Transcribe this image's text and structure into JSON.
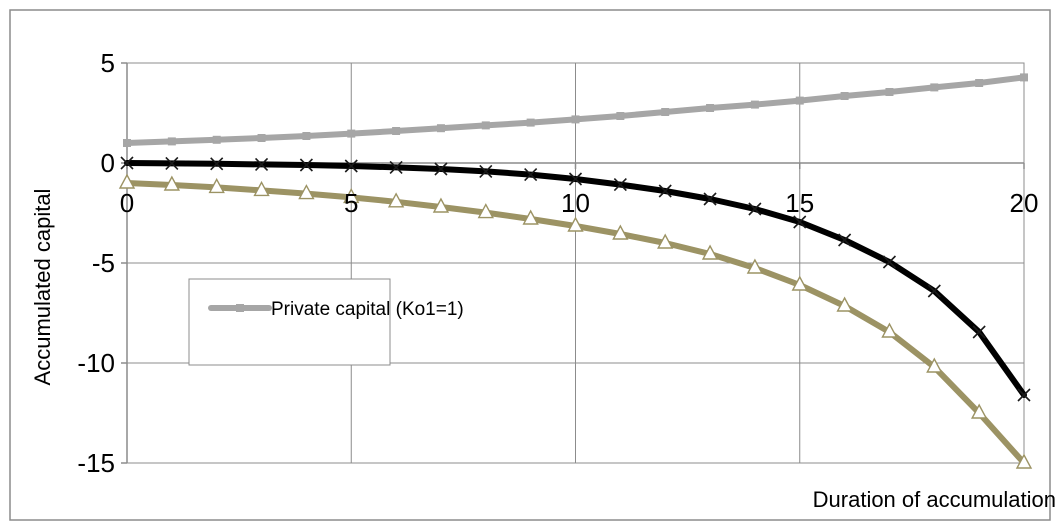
{
  "chart_data": {
    "type": "line",
    "title": "",
    "xlabel": "Duration of accumulation",
    "ylabel": "Accumulated capital",
    "xlim": [
      0,
      20
    ],
    "ylim": [
      -15,
      5
    ],
    "x_ticks": [
      0,
      5,
      10,
      15,
      20
    ],
    "x_tick_labels": [
      "0",
      "5",
      "10",
      "15",
      "20"
    ],
    "y_ticks": [
      5,
      0,
      -5,
      -10,
      -15
    ],
    "y_tick_labels": [
      "5",
      "0",
      "-5",
      "-10",
      "-15"
    ],
    "grid": true,
    "legend_position": "center-left",
    "x": [
      0,
      1,
      2,
      3,
      4,
      5,
      6,
      7,
      8,
      9,
      10,
      11,
      12,
      13,
      14,
      15,
      16,
      17,
      18,
      19,
      20
    ],
    "series": [
      {
        "name": "Private capital (Ko1=1)",
        "color": "#a6a6a6",
        "marker": "square",
        "values": [
          1.0,
          1.08,
          1.16,
          1.25,
          1.35,
          1.47,
          1.6,
          1.74,
          1.88,
          2.02,
          2.18,
          2.35,
          2.55,
          2.75,
          2.92,
          3.12,
          3.35,
          3.55,
          3.78,
          4.0,
          4.28
        ]
      },
      {
        "name": "",
        "color": "#000000",
        "marker": "x",
        "values": [
          0.0,
          -0.02,
          -0.04,
          -0.07,
          -0.1,
          -0.15,
          -0.22,
          -0.3,
          -0.42,
          -0.58,
          -0.8,
          -1.08,
          -1.4,
          -1.8,
          -2.3,
          -2.95,
          -3.85,
          -4.95,
          -6.4,
          -8.45,
          -11.6
        ]
      },
      {
        "name": "",
        "color": "#9c9364",
        "marker": "triangle",
        "values": [
          -1.0,
          -1.1,
          -1.22,
          -1.37,
          -1.53,
          -1.72,
          -1.94,
          -2.2,
          -2.48,
          -2.8,
          -3.15,
          -3.55,
          -4.0,
          -4.55,
          -5.25,
          -6.1,
          -7.15,
          -8.45,
          -10.2,
          -12.5,
          -15.0
        ]
      }
    ]
  }
}
